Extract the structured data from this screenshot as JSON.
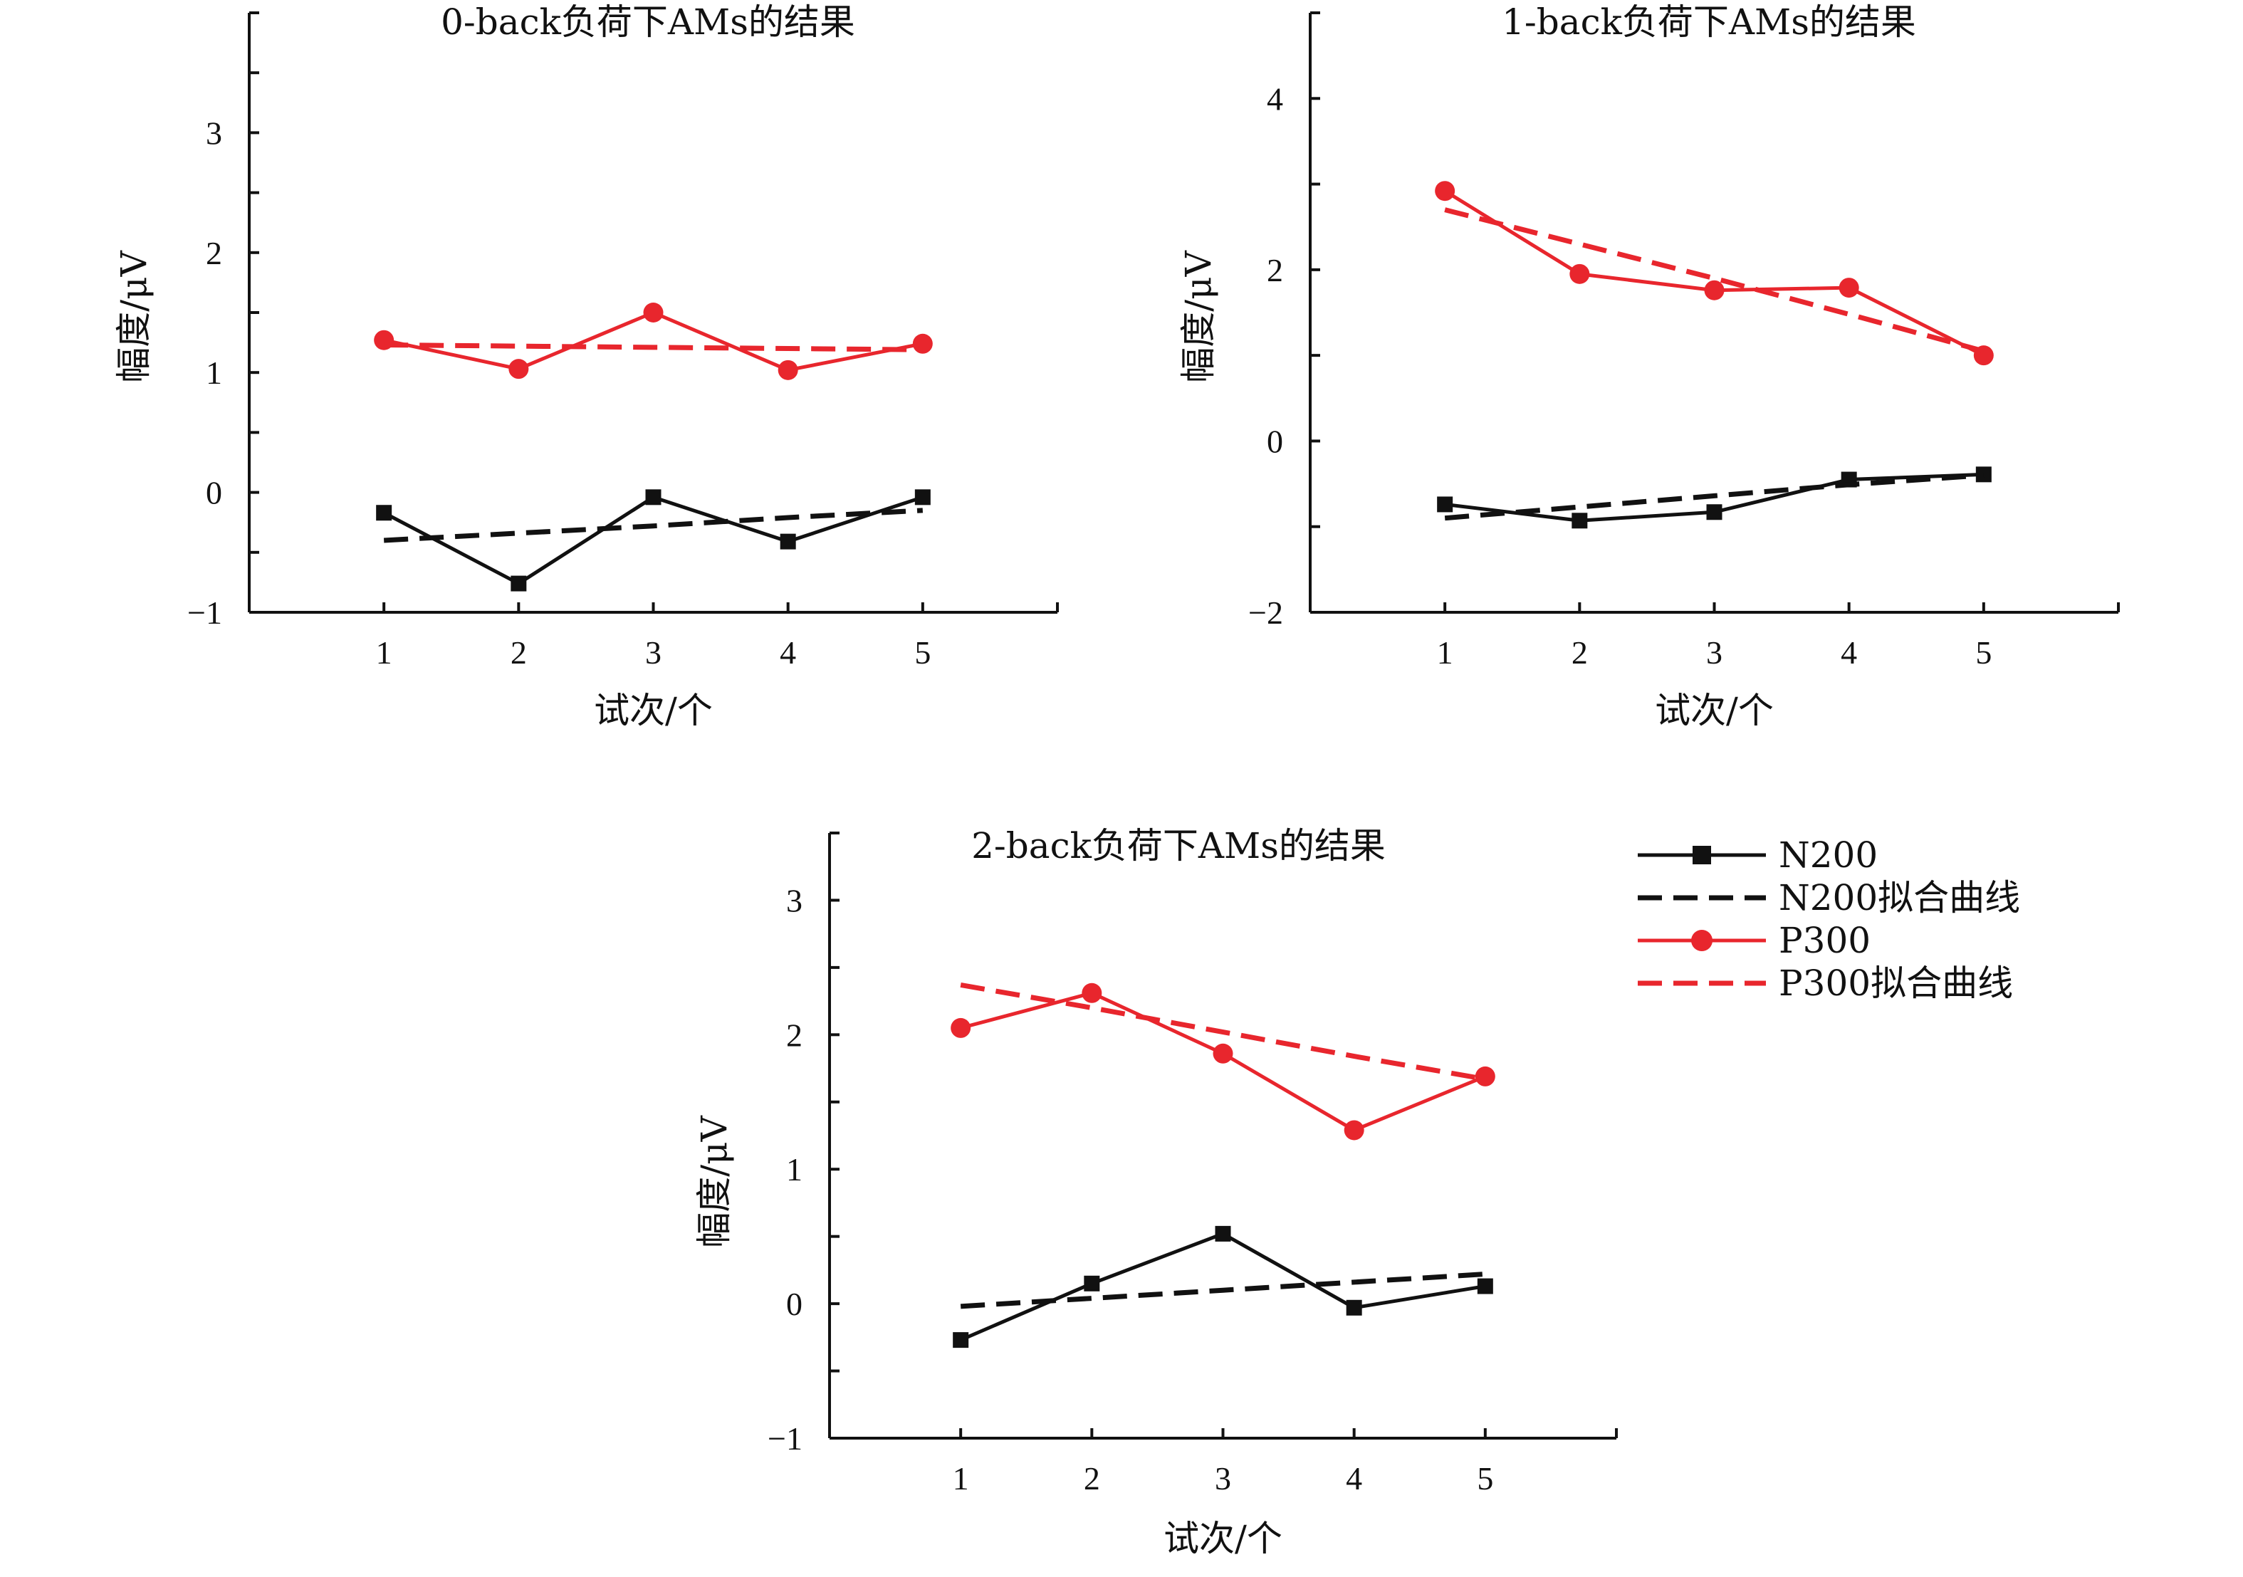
{
  "colors": {
    "n200": "#111111",
    "p300": "#e8262d"
  },
  "legend": {
    "items": [
      {
        "label": "N200",
        "color": "#111111",
        "style": "solid",
        "marker": "square"
      },
      {
        "label": "N200拟合曲线",
        "color": "#111111",
        "style": "dashed",
        "marker": "none"
      },
      {
        "label": "P300",
        "color": "#e8262d",
        "style": "solid",
        "marker": "circle"
      },
      {
        "label": "P300拟合曲线",
        "color": "#e8262d",
        "style": "dashed",
        "marker": "none"
      }
    ]
  },
  "chart_data": [
    {
      "type": "line",
      "title": "0-back负荷下AMs的结果",
      "xlabel": "试次/个",
      "ylabel": "幅度/μV",
      "x": [
        1,
        2,
        3,
        4,
        5
      ],
      "xlim": [
        0,
        6
      ],
      "ylim": [
        -1,
        4
      ],
      "yticks": [
        -1,
        0,
        1,
        2,
        3
      ],
      "ytick_labels": [
        "−1",
        "0",
        "1",
        "2",
        "3"
      ],
      "grid": false,
      "series": [
        {
          "name": "N200",
          "values": [
            -0.17,
            -0.76,
            -0.04,
            -0.41,
            -0.04
          ]
        },
        {
          "name": "N200拟合曲线",
          "values": [
            -0.4,
            -0.34,
            -0.28,
            -0.21,
            -0.15
          ]
        },
        {
          "name": "P300",
          "values": [
            1.27,
            1.03,
            1.5,
            1.02,
            1.24
          ]
        },
        {
          "name": "P300拟合曲线",
          "values": [
            1.23,
            1.22,
            1.21,
            1.2,
            1.19
          ]
        }
      ]
    },
    {
      "type": "line",
      "title": "1-back负荷下AMs的结果",
      "xlabel": "试次/个",
      "ylabel": "幅度/μV",
      "x": [
        1,
        2,
        3,
        4,
        5
      ],
      "xlim": [
        0,
        6
      ],
      "ylim": [
        -2,
        5
      ],
      "yticks": [
        -2,
        0,
        2,
        4
      ],
      "ytick_labels": [
        "−2",
        "0",
        "2",
        "4"
      ],
      "grid": false,
      "series": [
        {
          "name": "N200",
          "values": [
            -0.74,
            -0.93,
            -0.83,
            -0.45,
            -0.39
          ]
        },
        {
          "name": "N200拟合曲线",
          "values": [
            -0.9,
            -0.77,
            -0.64,
            -0.51,
            -0.4
          ]
        },
        {
          "name": "P300",
          "values": [
            2.92,
            1.95,
            1.76,
            1.79,
            1.0
          ]
        },
        {
          "name": "P300拟合曲线",
          "values": [
            2.7,
            2.3,
            1.9,
            1.48,
            1.05
          ]
        }
      ]
    },
    {
      "type": "line",
      "title": "2-back负荷下AMs的结果",
      "xlabel": "试次/个",
      "ylabel": "幅度/μV",
      "x": [
        1,
        2,
        3,
        4,
        5
      ],
      "xlim": [
        0,
        6
      ],
      "ylim": [
        -1,
        3.5
      ],
      "yticks": [
        -1,
        0,
        1,
        2,
        3
      ],
      "ytick_labels": [
        "−1",
        "0",
        "1",
        "2",
        "3"
      ],
      "grid": false,
      "series": [
        {
          "name": "N200",
          "values": [
            -0.27,
            0.15,
            0.52,
            -0.03,
            0.13
          ]
        },
        {
          "name": "N200拟合曲线",
          "values": [
            -0.02,
            0.04,
            0.1,
            0.16,
            0.22
          ]
        },
        {
          "name": "P300",
          "values": [
            2.05,
            2.31,
            1.86,
            1.29,
            1.69
          ]
        },
        {
          "name": "P300拟合曲线",
          "values": [
            2.37,
            2.2,
            2.02,
            1.84,
            1.67
          ]
        }
      ]
    }
  ]
}
